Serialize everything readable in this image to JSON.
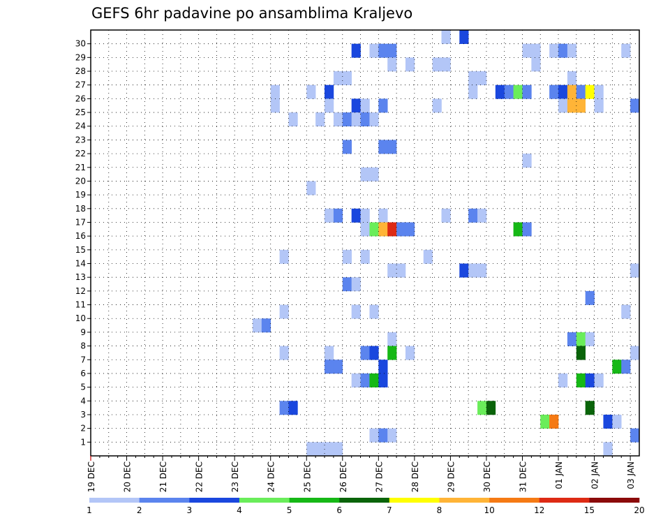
{
  "chart_data": {
    "type": "heatmap",
    "title": "GEFS 6hr padavine po ansamblima Kraljevo",
    "xlabel": "",
    "ylabel": "",
    "y_categories": [
      "1",
      "2",
      "3",
      "4",
      "5",
      "6",
      "7",
      "8",
      "9",
      "10",
      "11",
      "12",
      "13",
      "14",
      "15",
      "16",
      "17",
      "18",
      "19",
      "20",
      "21",
      "22",
      "23",
      "24",
      "25",
      "26",
      "27",
      "28",
      "29",
      "30"
    ],
    "x_tick_labels": [
      "19 DEC",
      "20 DEC",
      "21 DEC",
      "22 DEC",
      "23 DEC",
      "24 DEC",
      "25 DEC",
      "26 DEC",
      "27 DEC",
      "28 DEC",
      "29 DEC",
      "30 DEC",
      "31 DEC",
      "01 JAN",
      "02 JAN",
      "03 JAN"
    ],
    "x_steps_per_day": 4,
    "x_steps_total": 61,
    "colorbar": {
      "colors": [
        "#b3c6f7",
        "#5b84ee",
        "#1a47de",
        "#6aed5a",
        "#16b816",
        "#0a640a",
        "#ffff00",
        "#ffb437",
        "#f57a14",
        "#dd2a14",
        "#8b0a0a"
      ],
      "labels": [
        "1",
        "2",
        "3",
        "4",
        "5",
        "6",
        "7",
        "8",
        "10",
        "12",
        "15",
        "20"
      ]
    },
    "cells": [
      {
        "m": 30,
        "t": 39,
        "c": 0
      },
      {
        "m": 30,
        "t": 41,
        "c": 2
      },
      {
        "m": 29,
        "t": 29,
        "c": 2
      },
      {
        "m": 29,
        "t": 31,
        "c": 0
      },
      {
        "m": 29,
        "t": 32,
        "c": 1
      },
      {
        "m": 29,
        "t": 33,
        "c": 1
      },
      {
        "m": 29,
        "t": 48,
        "c": 0
      },
      {
        "m": 29,
        "t": 49,
        "c": 0
      },
      {
        "m": 29,
        "t": 51,
        "c": 0
      },
      {
        "m": 29,
        "t": 52,
        "c": 1
      },
      {
        "m": 29,
        "t": 53,
        "c": 0
      },
      {
        "m": 29,
        "t": 59,
        "c": 0
      },
      {
        "m": 28,
        "t": 33,
        "c": 0
      },
      {
        "m": 28,
        "t": 35,
        "c": 0
      },
      {
        "m": 28,
        "t": 38,
        "c": 0
      },
      {
        "m": 28,
        "t": 39,
        "c": 0
      },
      {
        "m": 28,
        "t": 49,
        "c": 0
      },
      {
        "m": 27,
        "t": 27,
        "c": 0
      },
      {
        "m": 27,
        "t": 28,
        "c": 0
      },
      {
        "m": 27,
        "t": 42,
        "c": 0
      },
      {
        "m": 27,
        "t": 43,
        "c": 0
      },
      {
        "m": 27,
        "t": 53,
        "c": 0
      },
      {
        "m": 26,
        "t": 20,
        "c": 0
      },
      {
        "m": 26,
        "t": 24,
        "c": 0
      },
      {
        "m": 26,
        "t": 26,
        "c": 2
      },
      {
        "m": 26,
        "t": 42,
        "c": 0
      },
      {
        "m": 26,
        "t": 45,
        "c": 2
      },
      {
        "m": 26,
        "t": 46,
        "c": 1
      },
      {
        "m": 26,
        "t": 47,
        "c": 3
      },
      {
        "m": 26,
        "t": 48,
        "c": 1
      },
      {
        "m": 26,
        "t": 51,
        "c": 1
      },
      {
        "m": 26,
        "t": 52,
        "c": 2
      },
      {
        "m": 26,
        "t": 53,
        "c": 7
      },
      {
        "m": 26,
        "t": 54,
        "c": 1
      },
      {
        "m": 26,
        "t": 55,
        "c": 6
      },
      {
        "m": 26,
        "t": 56,
        "c": 0
      },
      {
        "m": 25,
        "t": 20,
        "c": 0
      },
      {
        "m": 25,
        "t": 26,
        "c": 0
      },
      {
        "m": 25,
        "t": 29,
        "c": 2
      },
      {
        "m": 25,
        "t": 30,
        "c": 0
      },
      {
        "m": 25,
        "t": 32,
        "c": 1
      },
      {
        "m": 25,
        "t": 38,
        "c": 0
      },
      {
        "m": 25,
        "t": 52,
        "c": 0
      },
      {
        "m": 25,
        "t": 53,
        "c": 7
      },
      {
        "m": 25,
        "t": 54,
        "c": 7
      },
      {
        "m": 25,
        "t": 56,
        "c": 0
      },
      {
        "m": 25,
        "t": 60,
        "c": 1
      },
      {
        "m": 24,
        "t": 22,
        "c": 0
      },
      {
        "m": 24,
        "t": 25,
        "c": 0
      },
      {
        "m": 24,
        "t": 27,
        "c": 0
      },
      {
        "m": 24,
        "t": 28,
        "c": 1
      },
      {
        "m": 24,
        "t": 29,
        "c": 0
      },
      {
        "m": 24,
        "t": 30,
        "c": 1
      },
      {
        "m": 24,
        "t": 31,
        "c": 0
      },
      {
        "m": 22,
        "t": 28,
        "c": 1
      },
      {
        "m": 22,
        "t": 32,
        "c": 1
      },
      {
        "m": 22,
        "t": 33,
        "c": 1
      },
      {
        "m": 21,
        "t": 48,
        "c": 0
      },
      {
        "m": 20,
        "t": 30,
        "c": 0
      },
      {
        "m": 20,
        "t": 31,
        "c": 0
      },
      {
        "m": 19,
        "t": 24,
        "c": 0
      },
      {
        "m": 17,
        "t": 26,
        "c": 0
      },
      {
        "m": 17,
        "t": 27,
        "c": 1
      },
      {
        "m": 17,
        "t": 29,
        "c": 2
      },
      {
        "m": 17,
        "t": 30,
        "c": 0
      },
      {
        "m": 17,
        "t": 32,
        "c": 0
      },
      {
        "m": 17,
        "t": 39,
        "c": 0
      },
      {
        "m": 17,
        "t": 42,
        "c": 1
      },
      {
        "m": 17,
        "t": 43,
        "c": 0
      },
      {
        "m": 16,
        "t": 30,
        "c": 0
      },
      {
        "m": 16,
        "t": 31,
        "c": 3
      },
      {
        "m": 16,
        "t": 32,
        "c": 7
      },
      {
        "m": 16,
        "t": 33,
        "c": 9
      },
      {
        "m": 16,
        "t": 34,
        "c": 1
      },
      {
        "m": 16,
        "t": 35,
        "c": 1
      },
      {
        "m": 16,
        "t": 47,
        "c": 4
      },
      {
        "m": 16,
        "t": 48,
        "c": 1
      },
      {
        "m": 14,
        "t": 21,
        "c": 0
      },
      {
        "m": 14,
        "t": 28,
        "c": 0
      },
      {
        "m": 14,
        "t": 30,
        "c": 0
      },
      {
        "m": 14,
        "t": 37,
        "c": 0
      },
      {
        "m": 13,
        "t": 33,
        "c": 0
      },
      {
        "m": 13,
        "t": 34,
        "c": 0
      },
      {
        "m": 13,
        "t": 41,
        "c": 2
      },
      {
        "m": 13,
        "t": 42,
        "c": 0
      },
      {
        "m": 13,
        "t": 43,
        "c": 0
      },
      {
        "m": 13,
        "t": 60,
        "c": 0
      },
      {
        "m": 12,
        "t": 28,
        "c": 1
      },
      {
        "m": 12,
        "t": 29,
        "c": 0
      },
      {
        "m": 11,
        "t": 55,
        "c": 1
      },
      {
        "m": 10,
        "t": 21,
        "c": 0
      },
      {
        "m": 10,
        "t": 29,
        "c": 0
      },
      {
        "m": 10,
        "t": 31,
        "c": 0
      },
      {
        "m": 10,
        "t": 59,
        "c": 0
      },
      {
        "m": 9,
        "t": 18,
        "c": 0
      },
      {
        "m": 9,
        "t": 19,
        "c": 1
      },
      {
        "m": 8,
        "t": 33,
        "c": 0
      },
      {
        "m": 8,
        "t": 53,
        "c": 1
      },
      {
        "m": 8,
        "t": 54,
        "c": 3
      },
      {
        "m": 8,
        "t": 55,
        "c": 0
      },
      {
        "m": 7,
        "t": 21,
        "c": 0
      },
      {
        "m": 7,
        "t": 26,
        "c": 0
      },
      {
        "m": 7,
        "t": 30,
        "c": 1
      },
      {
        "m": 7,
        "t": 31,
        "c": 2
      },
      {
        "m": 7,
        "t": 33,
        "c": 4
      },
      {
        "m": 7,
        "t": 35,
        "c": 0
      },
      {
        "m": 7,
        "t": 54,
        "c": 5
      },
      {
        "m": 7,
        "t": 60,
        "c": 0
      },
      {
        "m": 6,
        "t": 26,
        "c": 1
      },
      {
        "m": 6,
        "t": 27,
        "c": 1
      },
      {
        "m": 6,
        "t": 32,
        "c": 2
      },
      {
        "m": 6,
        "t": 58,
        "c": 4
      },
      {
        "m": 6,
        "t": 59,
        "c": 1
      },
      {
        "m": 5,
        "t": 29,
        "c": 0
      },
      {
        "m": 5,
        "t": 30,
        "c": 1
      },
      {
        "m": 5,
        "t": 31,
        "c": 4
      },
      {
        "m": 5,
        "t": 32,
        "c": 2
      },
      {
        "m": 5,
        "t": 52,
        "c": 0
      },
      {
        "m": 5,
        "t": 54,
        "c": 4
      },
      {
        "m": 5,
        "t": 55,
        "c": 2
      },
      {
        "m": 5,
        "t": 56,
        "c": 0
      },
      {
        "m": 3,
        "t": 21,
        "c": 1
      },
      {
        "m": 3,
        "t": 22,
        "c": 2
      },
      {
        "m": 3,
        "t": 43,
        "c": 3
      },
      {
        "m": 3,
        "t": 44,
        "c": 5
      },
      {
        "m": 3,
        "t": 55,
        "c": 5
      },
      {
        "m": 2,
        "t": 50,
        "c": 3
      },
      {
        "m": 2,
        "t": 51,
        "c": 8
      },
      {
        "m": 2,
        "t": 57,
        "c": 2
      },
      {
        "m": 2,
        "t": 58,
        "c": 0
      },
      {
        "m": 1,
        "t": 31,
        "c": 0
      },
      {
        "m": 1,
        "t": 32,
        "c": 1
      },
      {
        "m": 1,
        "t": 33,
        "c": 0
      },
      {
        "m": 1,
        "t": 60,
        "c": 1
      },
      {
        "m": 0,
        "t": 24,
        "c": 0
      },
      {
        "m": 0,
        "t": 25,
        "c": 0
      },
      {
        "m": 0,
        "t": 26,
        "c": 0
      },
      {
        "m": 0,
        "t": 27,
        "c": 0
      },
      {
        "m": 0,
        "t": 57,
        "c": 0
      }
    ]
  }
}
